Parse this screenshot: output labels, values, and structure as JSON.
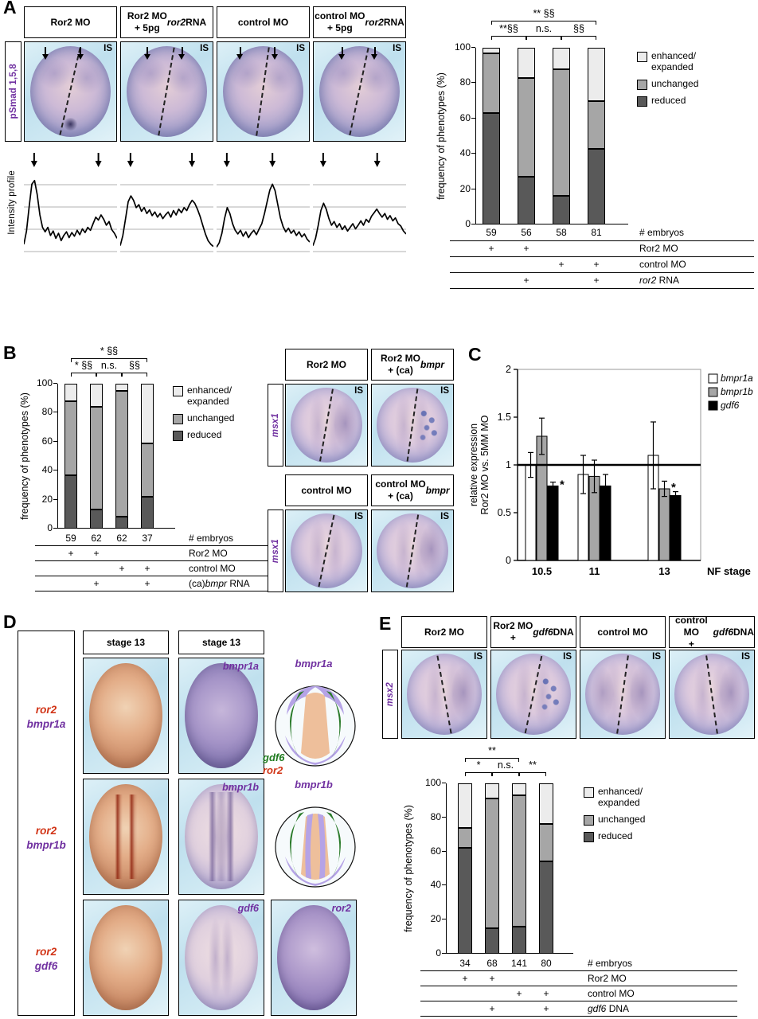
{
  "colors": {
    "reduced": "#595959",
    "unchanged": "#a6a6a6",
    "enhanced": "#ececec",
    "purple": "#7030a0",
    "red": "#d13416",
    "green": "#1e7a1e"
  },
  "panelA": {
    "label": "A",
    "gene": "pSmad 1,5,8",
    "profile_label": "Intensity profile",
    "is": "IS",
    "headers": [
      "Ror2 MO",
      "Ror2 MO\n+ 5pg *ror2* RNA",
      "control MO",
      "control MO\n+ 5pg *ror2* RNA"
    ],
    "profiles": [
      {
        "points": [
          0.1,
          0.28,
          0.62,
          0.92,
          0.97,
          0.78,
          0.5,
          0.33,
          0.27,
          0.33,
          0.22,
          0.28,
          0.18,
          0.25,
          0.15,
          0.22,
          0.27,
          0.19,
          0.26,
          0.21,
          0.29,
          0.23,
          0.31,
          0.26,
          0.33,
          0.29,
          0.38,
          0.47,
          0.43,
          0.5,
          0.44,
          0.36,
          0.41,
          0.3,
          0.25,
          0.18
        ],
        "arrows": [
          0.11,
          0.8
        ]
      },
      {
        "points": [
          0.08,
          0.22,
          0.45,
          0.68,
          0.76,
          0.7,
          0.6,
          0.64,
          0.55,
          0.6,
          0.52,
          0.57,
          0.49,
          0.54,
          0.47,
          0.52,
          0.45,
          0.5,
          0.54,
          0.47,
          0.56,
          0.5,
          0.58,
          0.53,
          0.6,
          0.56,
          0.64,
          0.7,
          0.66,
          0.58,
          0.48,
          0.36,
          0.24,
          0.15,
          0.1,
          0.07
        ],
        "arrows": [
          0.11,
          0.77
        ]
      },
      {
        "points": [
          0.06,
          0.12,
          0.25,
          0.45,
          0.6,
          0.52,
          0.38,
          0.29,
          0.24,
          0.29,
          0.21,
          0.27,
          0.19,
          0.25,
          0.29,
          0.23,
          0.31,
          0.38,
          0.52,
          0.68,
          0.84,
          0.92,
          0.83,
          0.64,
          0.46,
          0.34,
          0.27,
          0.32,
          0.25,
          0.29,
          0.22,
          0.27,
          0.2,
          0.24,
          0.17,
          0.13
        ],
        "arrows": [
          0.11,
          0.6
        ]
      },
      {
        "points": [
          0.08,
          0.18,
          0.36,
          0.56,
          0.66,
          0.58,
          0.45,
          0.36,
          0.41,
          0.33,
          0.38,
          0.3,
          0.35,
          0.28,
          0.33,
          0.38,
          0.31,
          0.36,
          0.42,
          0.36,
          0.44,
          0.4,
          0.48,
          0.53,
          0.58,
          0.52,
          0.47,
          0.52,
          0.44,
          0.49,
          0.42,
          0.46,
          0.38,
          0.35,
          0.28,
          0.24
        ],
        "arrows": [
          0.11,
          0.69
        ]
      }
    ],
    "chart": {
      "type": "stacked-bar",
      "ylabel": "frequency of phenotypes (%)",
      "ymax": 100,
      "yticks": [
        100,
        80,
        60,
        40,
        20,
        0
      ],
      "series": [
        {
          "key": "reduced",
          "name": "reduced",
          "values": [
            63,
            27,
            16,
            43
          ]
        },
        {
          "key": "unchanged",
          "name": "unchanged",
          "values": [
            34,
            56,
            72,
            27
          ]
        },
        {
          "key": "enhanced",
          "name": "enhanced/expanded",
          "values": [
            3,
            17,
            12,
            30
          ]
        }
      ],
      "legend": [
        {
          "key": "enhanced",
          "label": "enhanced/\nexpanded"
        },
        {
          "key": "unchanged",
          "label": "unchanged"
        },
        {
          "key": "reduced",
          "label": "reduced"
        }
      ],
      "sig": [
        {
          "from": 0,
          "to": 3,
          "level": 2,
          "text": "** §§"
        },
        {
          "from": 0,
          "to": 1,
          "level": 1,
          "text": "**§§"
        },
        {
          "from": 1,
          "to": 2,
          "level": 1,
          "text": "n.s."
        },
        {
          "from": 2,
          "to": 3,
          "level": 1,
          "text": "§§"
        }
      ],
      "table": [
        {
          "label": "# embryos",
          "cells": [
            "59",
            "56",
            "58",
            "81"
          ]
        },
        {
          "label": "Ror2 MO",
          "cells": [
            "+",
            "+",
            "",
            ""
          ]
        },
        {
          "label": "control MO",
          "cells": [
            "",
            "",
            "+",
            "+"
          ]
        },
        {
          "label": "*ror2* RNA",
          "cells": [
            "",
            "+",
            "",
            "+"
          ]
        }
      ]
    }
  },
  "panelB": {
    "label": "B",
    "is": "IS",
    "chart": {
      "type": "stacked-bar",
      "ylabel": "frequency of phenotypes (%)",
      "ymax": 100,
      "yticks": [
        100,
        80,
        60,
        40,
        20,
        0
      ],
      "series": [
        {
          "key": "reduced",
          "name": "reduced",
          "values": [
            37,
            13,
            8,
            22
          ]
        },
        {
          "key": "unchanged",
          "name": "unchanged",
          "values": [
            51,
            71,
            87,
            37
          ]
        },
        {
          "key": "enhanced",
          "name": "enhanced/expanded",
          "values": [
            12,
            16,
            5,
            41
          ]
        }
      ],
      "legend": [
        {
          "key": "enhanced",
          "label": "enhanced/\nexpanded"
        },
        {
          "key": "unchanged",
          "label": "unchanged"
        },
        {
          "key": "reduced",
          "label": "reduced"
        }
      ],
      "sig": [
        {
          "from": 0,
          "to": 3,
          "level": 2,
          "text": "* §§"
        },
        {
          "from": 0,
          "to": 1,
          "level": 1,
          "text": "* §§"
        },
        {
          "from": 1,
          "to": 2,
          "level": 1,
          "text": "n.s."
        },
        {
          "from": 2,
          "to": 3,
          "level": 1,
          "text": "§§"
        }
      ],
      "table": [
        {
          "label": "# embryos",
          "cells": [
            "59",
            "62",
            "62",
            "37"
          ]
        },
        {
          "label": "Ror2 MO",
          "cells": [
            "+",
            "+",
            "",
            ""
          ]
        },
        {
          "label": "control MO",
          "cells": [
            "",
            "",
            "+",
            "+"
          ]
        },
        {
          "label": "(ca)*bmpr* RNA",
          "cells": [
            "",
            "+",
            "",
            "+"
          ]
        }
      ]
    },
    "images": {
      "gene": "msx1",
      "headers_top": [
        "Ror2 MO",
        "Ror2 MO\n+ (ca)*bmpr*"
      ],
      "headers_bottom": [
        "control MO",
        "control MO\n+ (ca)*bmpr*"
      ]
    }
  },
  "panelC": {
    "label": "C",
    "chart": {
      "type": "grouped-bar",
      "ylabel": "relative expression\nRor2 MO vs. 5MM MO",
      "xlabel": "NF stage",
      "ymax": 2,
      "yticks": [
        2,
        1.5,
        1,
        0.5,
        0
      ],
      "groups": [
        "10.5",
        "11",
        "13"
      ],
      "series": [
        {
          "name": "bmpr1a",
          "color": "#ffffff",
          "values": [
            1.0,
            0.9,
            1.1
          ],
          "err": [
            0.13,
            0.2,
            0.35
          ]
        },
        {
          "name": "bmpr1b",
          "color": "#a6a6a6",
          "values": [
            1.3,
            0.88,
            0.75
          ],
          "err": [
            0.19,
            0.17,
            0.08
          ]
        },
        {
          "name": "gdf6",
          "color": "#000000",
          "values": [
            0.78,
            0.78,
            0.68
          ],
          "err": [
            0.04,
            0.12,
            0.04
          ]
        }
      ],
      "ref_line": 1,
      "asterisks": [
        {
          "group": 0,
          "series": 2,
          "text": "*"
        },
        {
          "group": 2,
          "series": 1,
          "text": "*"
        }
      ]
    }
  },
  "panelD": {
    "label": "D",
    "col_headers": [
      "stage 13",
      "stage 13"
    ],
    "row_labels": [
      [
        {
          "t": "ror2",
          "c": "red"
        },
        {
          "t": "bmpr1a",
          "c": "purple"
        }
      ],
      [
        {
          "t": "ror2",
          "c": "red"
        },
        {
          "t": "bmpr1b",
          "c": "purple"
        }
      ],
      [
        {
          "t": "ror2",
          "c": "red"
        },
        {
          "t": "gdf6",
          "c": "purple"
        }
      ]
    ],
    "image_labels": {
      "r1": "bmpr1a",
      "r2": "bmpr1b",
      "r3a": "gdf6",
      "r3b": "ror2"
    },
    "schematic": {
      "top_label": "bmpr1a",
      "bottom_label": "bmpr1b",
      "side_label": [
        {
          "t": "gdf6",
          "c": "green"
        },
        {
          "t": "ror2",
          "c": "red"
        }
      ]
    }
  },
  "panelE": {
    "label": "E",
    "gene": "msx2",
    "is": "IS",
    "headers": [
      "Ror2 MO",
      "Ror2 MO\n+ *gdf6* DNA",
      "control MO",
      "control MO\n+ *gdf6* DNA"
    ],
    "chart": {
      "type": "stacked-bar",
      "ylabel": "frequency of phenotypes (%)",
      "ymax": 100,
      "yticks": [
        100,
        80,
        60,
        40,
        20,
        0
      ],
      "series": [
        {
          "key": "reduced",
          "name": "reduced",
          "values": [
            62,
            15,
            16,
            54
          ]
        },
        {
          "key": "unchanged",
          "name": "unchanged",
          "values": [
            12,
            76,
            77,
            22
          ]
        },
        {
          "key": "enhanced",
          "name": "enhanced/expanded",
          "values": [
            26,
            9,
            7,
            24
          ]
        }
      ],
      "legend": [
        {
          "key": "enhanced",
          "label": "enhanced/\nexpanded"
        },
        {
          "key": "unchanged",
          "label": "unchanged"
        },
        {
          "key": "reduced",
          "label": "reduced"
        }
      ],
      "sig": [
        {
          "from": 0,
          "to": 2,
          "level": 2,
          "text": "**"
        },
        {
          "from": 0,
          "to": 1,
          "level": 1,
          "text": "*"
        },
        {
          "from": 1,
          "to": 2,
          "level": 1,
          "text": "n.s."
        },
        {
          "from": 2,
          "to": 3,
          "level": 1,
          "text": "**"
        }
      ],
      "table": [
        {
          "label": "# embryos",
          "cells": [
            "34",
            "68",
            "141",
            "80"
          ]
        },
        {
          "label": "Ror2 MO",
          "cells": [
            "+",
            "+",
            "",
            ""
          ]
        },
        {
          "label": "control MO",
          "cells": [
            "",
            "",
            "+",
            "+"
          ]
        },
        {
          "label": "*gdf6* DNA",
          "cells": [
            "",
            "+",
            "",
            "+"
          ]
        }
      ]
    }
  }
}
